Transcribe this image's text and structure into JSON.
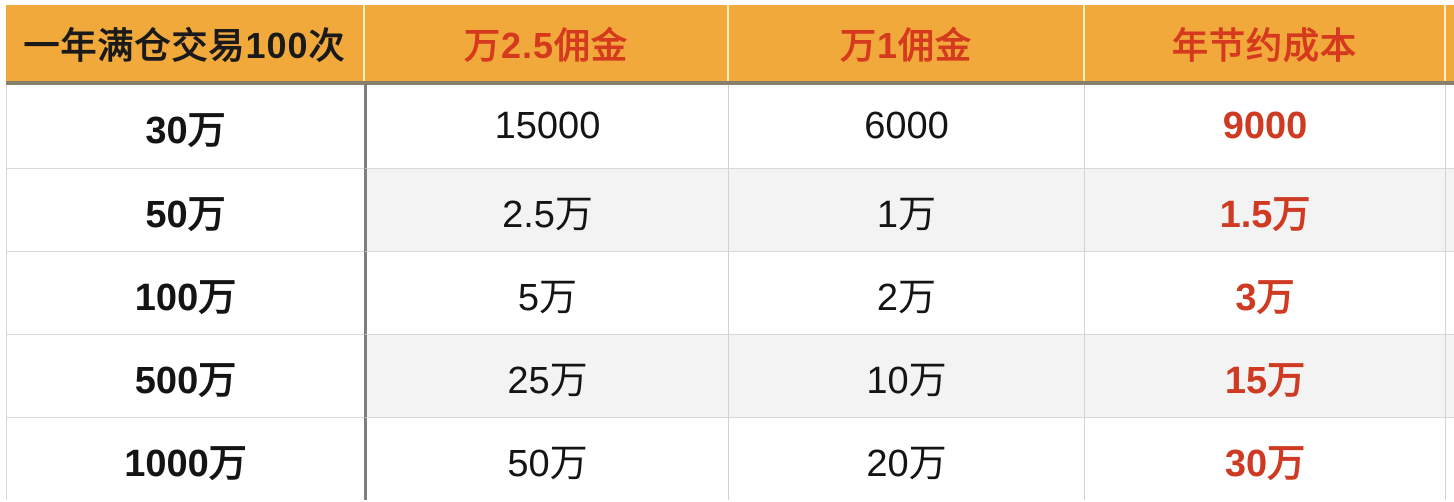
{
  "table": {
    "columns": [
      {
        "label": "一年满仓交易100次"
      },
      {
        "label": "万2.5佣金"
      },
      {
        "label": "万1佣金"
      },
      {
        "label": "年节约成本"
      }
    ],
    "rows": [
      {
        "capital": "30万",
        "fee25": "15000",
        "fee1": "6000",
        "saving": "9000"
      },
      {
        "capital": "50万",
        "fee25": "2.5万",
        "fee1": "1万",
        "saving": "1.5万"
      },
      {
        "capital": "100万",
        "fee25": "5万",
        "fee1": "2万",
        "saving": "3万"
      },
      {
        "capital": "500万",
        "fee25": "25万",
        "fee1": "10万",
        "saving": "15万"
      },
      {
        "capital": "1000万",
        "fee25": "50万",
        "fee1": "20万",
        "saving": "30万"
      }
    ],
    "colors": {
      "header_bg": "#F2A93C",
      "header_black": "#1A1A1A",
      "header_red": "#D53A1E",
      "saving_red": "#CE3A22",
      "row_alt_bg": "#F3F3F4",
      "grid_line": "#D9D9D9",
      "strong_divider": "#7E7E7E",
      "header_shadow": "#87806C"
    }
  }
}
